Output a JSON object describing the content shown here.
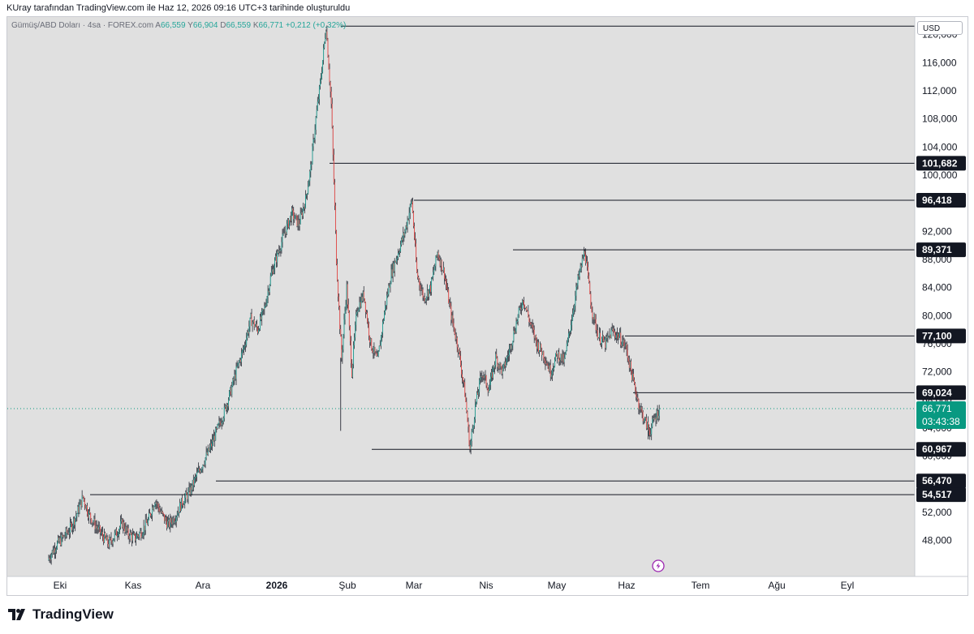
{
  "caption": "KUray tarafından TradingView.com ile Haz 12, 2026 09:16 UTC+3 tarihinde oluşturuldu",
  "symbol": {
    "name": "Gümüş/ABD Doları · 4sa · FOREX.com",
    "open_label": "A",
    "open": "66,559",
    "high_label": "Y",
    "high": "66,904",
    "low_label": "D",
    "low": "66,559",
    "close_label": "K",
    "close": "66,771",
    "change": "+0,212 (+0,32%)"
  },
  "currency": "USD",
  "brand": "TradingView",
  "colors": {
    "up": "#26a69a",
    "down": "#ef5350",
    "bg": "#e0e0e0",
    "badge": "#131722",
    "current": "#089981"
  },
  "chart_data": {
    "type": "line",
    "x_axis": {
      "labels": [
        "Eki",
        "Kas",
        "Ara",
        "2026",
        "Şub",
        "Mar",
        "Nis",
        "May",
        "Haz",
        "Tem",
        "Ağu",
        "Eyl"
      ]
    },
    "y_axis": {
      "ticks": [
        "48,000",
        "52,000",
        "56,000",
        "60,000",
        "64,000",
        "68,000",
        "72,000",
        "76,000",
        "80,000",
        "84,000",
        "88,000",
        "92,000",
        "96,000",
        "100,000",
        "104,000",
        "108,000",
        "112,000",
        "116,000",
        "120,000"
      ],
      "range": [
        45000,
        123000
      ]
    },
    "horizontal_levels": [
      {
        "value": 121.2,
        "label": ""
      },
      {
        "value": 101.682,
        "label": "101,682"
      },
      {
        "value": 96.418,
        "label": "96,418"
      },
      {
        "value": 89.371,
        "label": "89,371"
      },
      {
        "value": 77.1,
        "label": "77,100"
      },
      {
        "value": 69.024,
        "label": "69,024"
      },
      {
        "value": 60.967,
        "label": "60,967"
      },
      {
        "value": 56.47,
        "label": "56,470"
      },
      {
        "value": 54.517,
        "label": "54,517"
      }
    ],
    "current_price": {
      "value": 66.771,
      "label": "66,771",
      "countdown": "03:43:38"
    },
    "series": [
      {
        "values": [
          [
            0.0,
            45.5
          ],
          [
            0.4,
            47.2
          ],
          [
            0.8,
            48.3
          ],
          [
            1.2,
            49.5
          ],
          [
            1.6,
            51.5
          ],
          [
            2.0,
            54.2
          ],
          [
            2.3,
            52.0
          ],
          [
            2.7,
            50.2
          ],
          [
            3.1,
            48.8
          ],
          [
            3.5,
            47.5
          ],
          [
            3.9,
            48.9
          ],
          [
            4.3,
            50.5
          ],
          [
            4.6,
            49.0
          ],
          [
            5.0,
            48.3
          ],
          [
            5.4,
            49.2
          ],
          [
            5.8,
            50.8
          ],
          [
            6.2,
            53.8
          ],
          [
            6.6,
            51.7
          ],
          [
            7.0,
            50.2
          ],
          [
            7.4,
            51.5
          ],
          [
            7.8,
            53.5
          ],
          [
            8.2,
            54.8
          ],
          [
            8.6,
            57.0
          ],
          [
            9.0,
            59.0
          ],
          [
            9.4,
            61.0
          ],
          [
            9.8,
            63.5
          ],
          [
            10.2,
            66.0
          ],
          [
            10.6,
            69.0
          ],
          [
            11.0,
            72.5
          ],
          [
            11.4,
            75.5
          ],
          [
            11.8,
            79.5
          ],
          [
            12.2,
            78.0
          ],
          [
            12.6,
            81.0
          ],
          [
            13.0,
            86.0
          ],
          [
            13.4,
            89.0
          ],
          [
            13.8,
            92.0
          ],
          [
            14.2,
            94.5
          ],
          [
            14.6,
            93.0
          ],
          [
            15.0,
            96.5
          ],
          [
            15.3,
            101.0
          ],
          [
            15.6,
            108.0
          ],
          [
            15.9,
            114.0
          ],
          [
            16.2,
            121.2
          ],
          [
            16.5,
            110.0
          ],
          [
            16.8,
            88.0
          ],
          [
            17.1,
            74.0
          ],
          [
            17.4,
            84.0
          ],
          [
            17.7,
            72.0
          ],
          [
            18.0,
            81.0
          ],
          [
            18.4,
            83.0
          ],
          [
            18.8,
            76.0
          ],
          [
            19.2,
            73.5
          ],
          [
            19.6,
            80.5
          ],
          [
            20.0,
            86.0
          ],
          [
            20.4,
            89.0
          ],
          [
            20.8,
            92.0
          ],
          [
            21.2,
            96.4
          ],
          [
            21.5,
            86.0
          ],
          [
            21.9,
            82.5
          ],
          [
            22.3,
            84.0
          ],
          [
            22.7,
            89.0
          ],
          [
            23.1,
            86.0
          ],
          [
            23.5,
            80.0
          ],
          [
            23.9,
            75.5
          ],
          [
            24.3,
            69.0
          ],
          [
            24.6,
            61.0
          ],
          [
            24.9,
            67.0
          ],
          [
            25.3,
            72.0
          ],
          [
            25.7,
            69.5
          ],
          [
            26.1,
            74.0
          ],
          [
            26.5,
            72.0
          ],
          [
            26.9,
            75.0
          ],
          [
            27.3,
            79.0
          ],
          [
            27.7,
            82.5
          ],
          [
            28.1,
            79.0
          ],
          [
            28.5,
            76.0
          ],
          [
            28.9,
            74.5
          ],
          [
            29.3,
            72.0
          ],
          [
            29.7,
            74.5
          ],
          [
            30.1,
            73.5
          ],
          [
            30.5,
            79.0
          ],
          [
            30.9,
            85.0
          ],
          [
            31.3,
            89.3
          ],
          [
            31.7,
            81.0
          ],
          [
            32.1,
            77.0
          ],
          [
            32.5,
            76.0
          ],
          [
            32.9,
            77.8
          ],
          [
            33.3,
            77.0
          ],
          [
            33.7,
            75.5
          ],
          [
            34.1,
            71.0
          ],
          [
            34.5,
            67.0
          ],
          [
            34.8,
            65.0
          ],
          [
            35.1,
            63.5
          ],
          [
            35.4,
            65.5
          ],
          [
            35.7,
            66.8
          ]
        ]
      }
    ]
  }
}
